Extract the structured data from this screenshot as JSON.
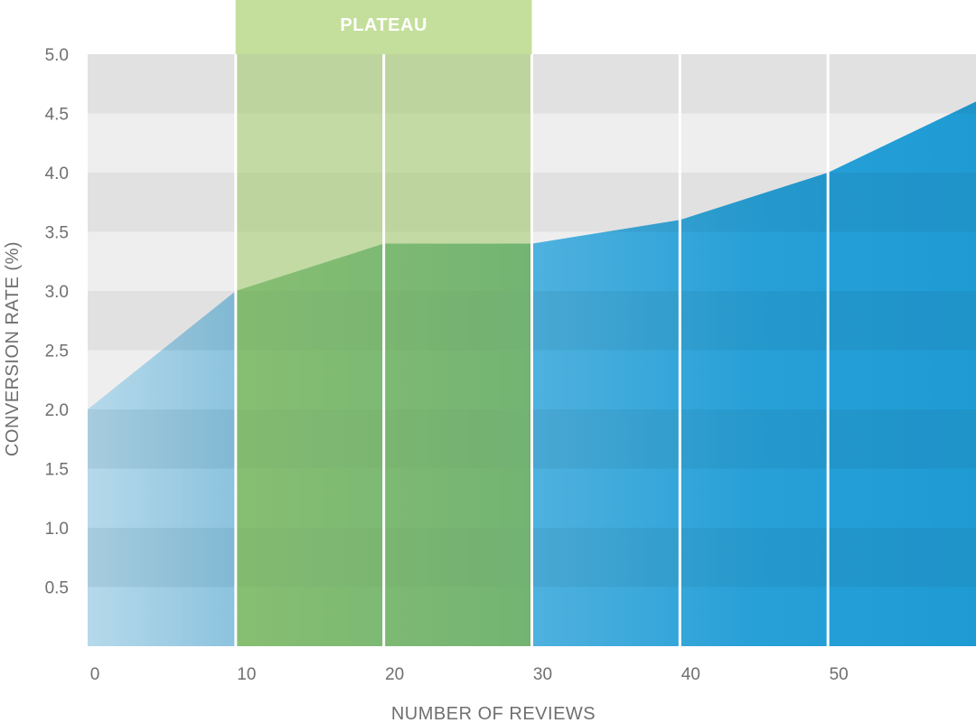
{
  "chart_data": {
    "type": "area",
    "title": "",
    "xlabel": "NUMBER OF REVIEWS",
    "ylabel": "CONVERSION RATE (%)",
    "xlim": [
      0,
      60
    ],
    "ylim": [
      0,
      5.0
    ],
    "x_ticks": [
      "0",
      "10",
      "20",
      "30",
      "40",
      "50"
    ],
    "y_ticks": [
      "0.5",
      "1.0",
      "1.5",
      "2.0",
      "2.5",
      "3.0",
      "3.5",
      "4.0",
      "4.5",
      "5.0"
    ],
    "x_tick_values": [
      0,
      10,
      20,
      30,
      40,
      50
    ],
    "y_tick_values": [
      0.5,
      1.0,
      1.5,
      2.0,
      2.5,
      3.0,
      3.5,
      4.0,
      4.5,
      5.0
    ],
    "series": [
      {
        "x": [
          0,
          10,
          20,
          30,
          40,
          50,
          60
        ],
        "values": [
          2.0,
          3.0,
          3.4,
          3.4,
          3.6,
          4.0,
          4.6
        ]
      }
    ],
    "highlight_band": {
      "label": "PLATEAU",
      "x_start": 10,
      "x_end": 30
    },
    "grid": "horizontal bands",
    "colors": {
      "band_dark": "#e2e1e1",
      "band_light": "#efeeee",
      "area_light_blue": "#b3d7e8",
      "area_blue": "#2aa0d6",
      "plateau_green": "#c4df9b",
      "plateau_area_green": "#5fa880"
    }
  }
}
